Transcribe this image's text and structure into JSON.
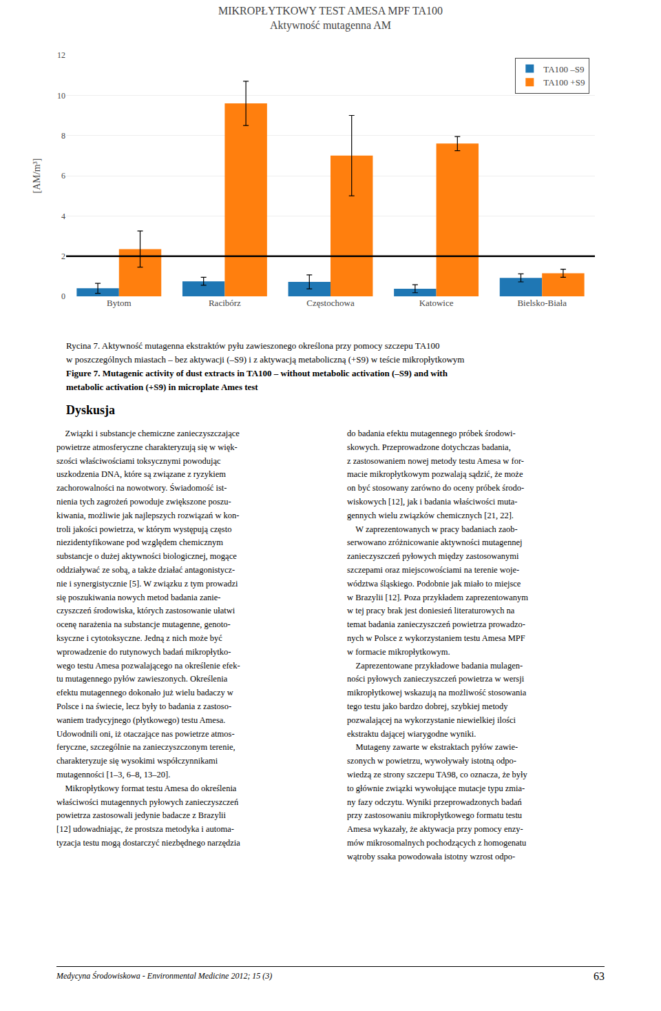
{
  "chart_data": {
    "type": "bar",
    "title": "MIKROPŁYTKOWY TEST AMESA MPF TA100",
    "subtitle": "Aktywność mutagenna AM",
    "categories": [
      "Bytom",
      "Racibórz",
      "Częstochowa",
      "Katowice",
      "Bielsko-Biała"
    ],
    "series": [
      {
        "name": "TA100 –S9",
        "values": [
          0.4,
          0.75,
          0.72,
          0.38,
          0.92
        ],
        "errors": [
          0.25,
          0.2,
          0.35,
          0.2,
          0.2
        ]
      },
      {
        "name": "TA100 +S9",
        "values": [
          2.35,
          9.6,
          7.0,
          7.6,
          1.15
        ],
        "errors": [
          0.9,
          1.1,
          2.0,
          0.35,
          0.2
        ]
      }
    ],
    "ylabel": "[AM/m³]",
    "ylim": [
      0,
      12
    ],
    "yticks": [
      0,
      2,
      4,
      6,
      8,
      10,
      12
    ],
    "grid": true,
    "legend": "upper right",
    "threshold_line": 2.0
  },
  "caption": [
    "Rycina 7. Aktywność mutagenna ekstraktów pyłu zawieszonego określona przy pomocy szczepu TA100",
    "w poszczególnych miastach – bez aktywacji (–S9) i z aktywacją metaboliczną (+S9) w teście mikropłytkowym"
  ],
  "caption_en": [
    "Figure 7. Mutagenic activity of dust extracts in TA100 – without metabolic activation (–S9) and with",
    "metabolic activation (+S9) in microplate Ames test"
  ],
  "section_title": "Dyskusja",
  "left_column": [
    "    Związki i substancje chemiczne zanieczyszczające",
    "powietrze atmosferyczne charakteryzują się w więk-",
    "szości właściwościami toksycznymi powodując",
    "uszkodzenia DNA, które są związane z ryzykiem",
    "zachorowalności na nowotwory. Świadomość ist-",
    "nienia tych zagrożeń powoduje zwiększone poszu-",
    "kiwania, możliwie jak najlepszych rozwiązań w kon-",
    "troli jakości powietrza, w którym występują często",
    "niezidentyfikowane pod względem chemicznym",
    "substancje o dużej aktywności biologicznej, mogące",
    "oddziaływać ze sobą, a także działać antagonistycz-",
    "nie i synergistycznie [5]. W związku z tym prowadzi",
    "się poszukiwania nowych metod badania zanie-",
    "czyszczeń środowiska, których zastosowanie ułatwi",
    "ocenę narażenia na substancje mutagenne, genoto-",
    "ksyczne i cytotoksyczne. Jedną z nich może być",
    "wprowadzenie do rutynowych badań mikropłytko-",
    "wego testu Amesa pozwalającego na określenie efek-",
    "tu mutagennego pyłów zawieszonych. Określenia",
    "efektu mutagennego dokonało już wielu badaczy w",
    "Polsce i na świecie, lecz były to badania z zastoso-",
    "waniem tradycyjnego (płytkowego) testu Amesa.",
    "Udowodnili oni, iż otaczające nas powietrze atmos-",
    "feryczne, szczególnie na zanieczyszczonym terenie,",
    "charakteryzuje się wysokimi współczynnikami",
    "mutagenności [1–3, 6–8, 13–20].",
    "    Mikropłytkowy format testu Amesa do określenia",
    "właściwości mutagennych pyłowych zanieczyszczeń",
    "powietrza zastosowali jedynie badacze z Brazylii",
    "[12] udowadniając, że prostsza metodyka i automa-",
    "tyzacja testu mogą dostarczyć niezbędnego narzędzia"
  ],
  "right_column": [
    "do badania efektu mutagennego próbek środowi-",
    "skowych. Przeprowadzone dotychczas badania,",
    "z zastosowaniem nowej metody testu Amesa w for-",
    "macie mikropłytkowym pozwalają sądzić, że może",
    "on być stosowany zarówno do oceny próbek środo-",
    "wiskowych [12], jak i badania właściwości muta-",
    "gennych wielu związków chemicznych [21, 22].",
    "    W zaprezentowanych w pracy badaniach zaob-",
    "serwowano zróżnicowanie aktywności mutagennej",
    "zanieczyszczeń pyłowych między zastosowanymi",
    "szczepami oraz miejscowościami na terenie woje-",
    "wództwa śląskiego. Podobnie jak miało to miejsce",
    "w Brazylii [12]. Poza przykładem zaprezentowanym",
    "w tej pracy brak jest doniesień literaturowych na",
    "temat badania zanieczyszczeń powietrza prowadzo-",
    "nych w Polsce z wykorzystaniem testu Amesa MPF",
    "w formacie mikropłytkowym.",
    "    Zaprezentowane przykładowe badania mulagen-",
    "ności pyłowych zanieczyszczeń powietrza w wersji",
    "mikropłytkowej wskazują na możliwość stosowania",
    "tego testu jako bardzo dobrej, szybkiej metody",
    "pozwalającej na wykorzystanie niewielkiej ilości",
    "ekstraktu dającej wiarygodne wyniki.",
    "    Mutageny zawarte w ekstraktach pyłów zawie-",
    "szonych w powietrzu, wywoływały istotną odpo-",
    "wiedzą ze strony szczepu TA98, co oznacza, że były",
    "to głównie związki wywołujące mutacje typu zmia-",
    "ny fazy odczytu. Wyniki przeprowadzonych badań",
    "przy zastosowaniu mikropłytkowego formatu testu",
    "Amesa wykazały, że aktywacja przy pomocy enzy-",
    "mów mikrosomalnych pochodzących z homogenatu",
    "wątroby ssaka powodowała istotny wzrost odpo-"
  ],
  "footer": "Medycyna Środowiskowa - Environmental Medicine 2012; 15 (3)",
  "page_number": "63"
}
